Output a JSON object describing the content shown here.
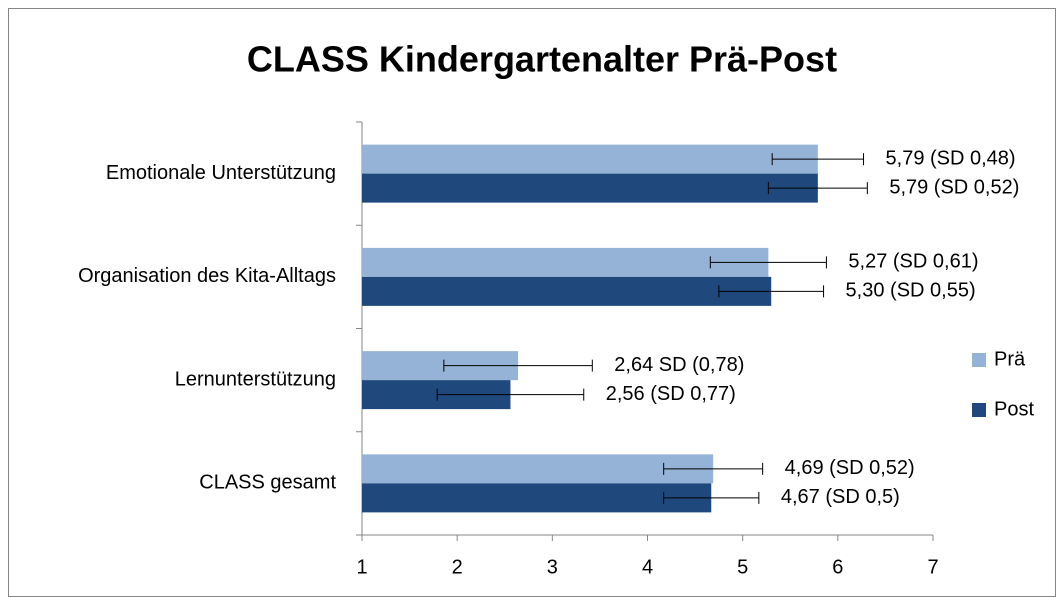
{
  "chart_data": {
    "type": "bar",
    "orientation": "horizontal",
    "title": "CLASS Kindergartenalter Prä-Post",
    "categories": [
      "Emotionale Unterstützung",
      "Organisation des Kita-Alltags",
      "Lernunterstützung",
      "CLASS gesamt"
    ],
    "series": [
      {
        "name": "Prä",
        "color": "#95b3d7",
        "values": [
          5.79,
          5.27,
          2.64,
          4.69
        ],
        "errors": [
          0.48,
          0.61,
          0.78,
          0.52
        ],
        "value_labels": [
          "5,79 (SD 0,48)",
          "5,27 (SD 0,61)",
          "2,64 SD (0,78)",
          "4,69 (SD 0,52)"
        ]
      },
      {
        "name": "Post",
        "color": "#1f497d",
        "values": [
          5.79,
          5.3,
          2.56,
          4.67
        ],
        "errors": [
          0.52,
          0.55,
          0.77,
          0.5
        ],
        "value_labels": [
          "5,79 (SD 0,52)",
          "5,30 (SD 0,55)",
          "2,56 (SD 0,77)",
          "4,67 (SD 0,5)"
        ]
      }
    ],
    "xlim": [
      1,
      7
    ],
    "xticks": [
      1,
      2,
      3,
      4,
      5,
      6,
      7
    ],
    "legend": "right"
  }
}
